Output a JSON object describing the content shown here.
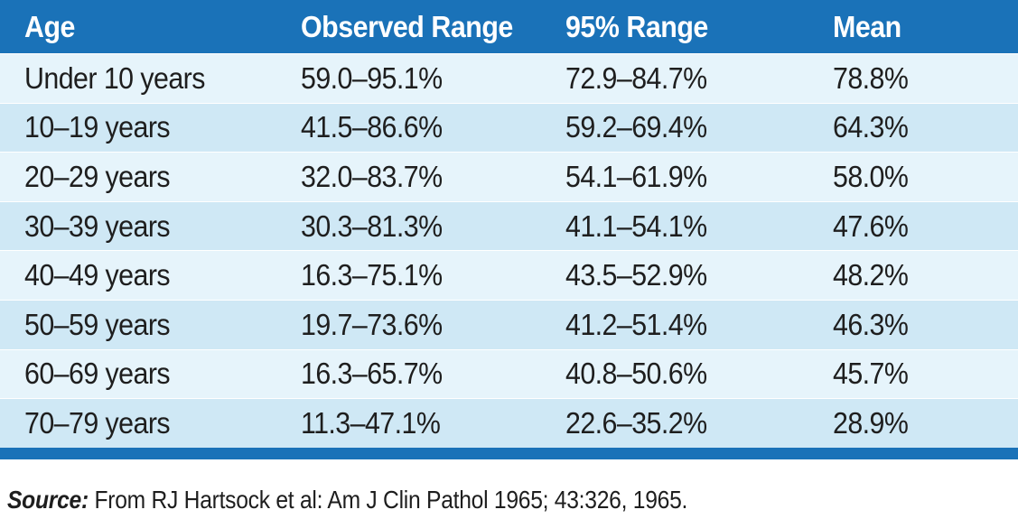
{
  "table": {
    "headers": [
      "Age",
      "Observed Range",
      "95% Range",
      "Mean"
    ],
    "rows": [
      [
        "Under 10 years",
        "59.0–95.1%",
        "72.9–84.7%",
        "78.8%"
      ],
      [
        "10–19 years",
        "41.5–86.6%",
        "59.2–69.4%",
        "64.3%"
      ],
      [
        "20–29 years",
        "32.0–83.7%",
        "54.1–61.9%",
        "58.0%"
      ],
      [
        "30–39 years",
        "30.3–81.3%",
        "41.1–54.1%",
        "47.6%"
      ],
      [
        "40–49 years",
        "16.3–75.1%",
        "43.5–52.9%",
        "48.2%"
      ],
      [
        "50–59 years",
        "19.7–73.6%",
        "41.2–51.4%",
        "46.3%"
      ],
      [
        "60–69 years",
        "16.3–65.7%",
        "40.8–50.6%",
        "45.7%"
      ],
      [
        "70–79 years",
        "11.3–47.1%",
        "22.6–35.2%",
        "28.9%"
      ]
    ]
  },
  "source": {
    "label": "Source:",
    "text": " From RJ Hartsock et al: Am J Clin Pathol 1965; 43:326, 1965."
  },
  "colors": {
    "header_bg": "#1a72b8",
    "row_light": "#e6f4fb",
    "row_dark": "#cfe8f5"
  }
}
